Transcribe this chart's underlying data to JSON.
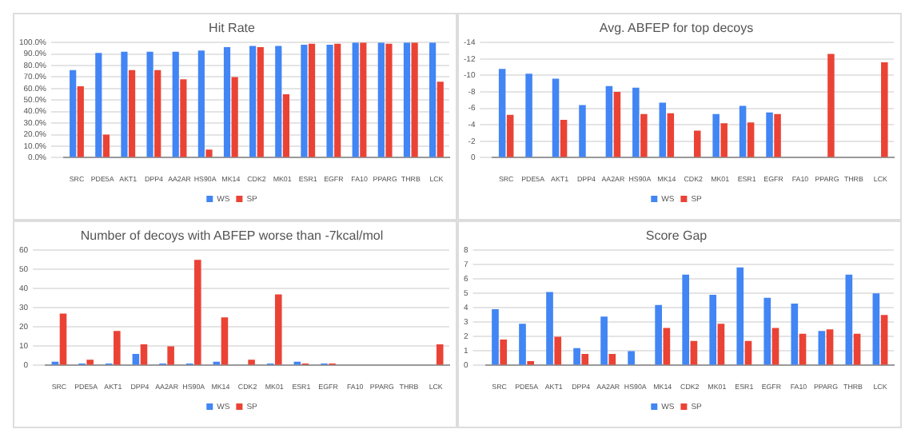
{
  "chart_data": [
    {
      "type": "bar",
      "title": "Hit Rate",
      "categories": [
        "SRC",
        "PDE5A",
        "AKT1",
        "DPP4",
        "AA2AR",
        "HS90A",
        "MK14",
        "CDK2",
        "MK01",
        "ESR1",
        "EGFR",
        "FA10",
        "PPARG",
        "THRB",
        "LCK"
      ],
      "series": [
        {
          "name": "WS",
          "color": "#4285f4",
          "values": [
            76,
            91,
            92,
            92,
            92,
            93,
            96,
            97,
            97,
            98,
            98,
            100,
            100,
            100,
            100
          ]
        },
        {
          "name": "SP",
          "color": "#ea4335",
          "values": [
            62,
            20,
            76,
            76,
            68,
            7,
            70,
            96,
            55,
            99,
            99,
            100,
            99,
            100,
            66
          ]
        }
      ],
      "ylim": [
        0,
        100
      ],
      "yticks": [
        {
          "value": 0,
          "label": "0.0%"
        },
        {
          "value": 10,
          "label": "10.0%"
        },
        {
          "value": 20,
          "label": "20.0%"
        },
        {
          "value": 30,
          "label": "30.0%"
        },
        {
          "value": 40,
          "label": "40.0%"
        },
        {
          "value": 50,
          "label": "50.0%"
        },
        {
          "value": 60,
          "label": "60.0%"
        },
        {
          "value": 70,
          "label": "70.0%"
        },
        {
          "value": 80,
          "label": "80.0%"
        },
        {
          "value": 90,
          "label": "90.0%"
        },
        {
          "value": 100,
          "label": "100.0%"
        }
      ],
      "grid": "y",
      "legend": "bottom"
    },
    {
      "type": "bar",
      "title": "Avg. ABFEP for top decoys",
      "categories": [
        "SRC",
        "PDE5A",
        "AKT1",
        "DPP4",
        "AA2AR",
        "HS90A",
        "MK14",
        "CDK2",
        "MK01",
        "ESR1",
        "EGFR",
        "FA10",
        "PPARG",
        "THRB",
        "LCK"
      ],
      "series": [
        {
          "name": "WS",
          "color": "#4285f4",
          "values": [
            -10.8,
            -10.2,
            -9.6,
            -6.4,
            -8.7,
            -8.5,
            -6.7,
            null,
            -5.3,
            -6.3,
            -5.5,
            null,
            null,
            null,
            null
          ]
        },
        {
          "name": "SP",
          "color": "#ea4335",
          "values": [
            -5.2,
            null,
            -4.6,
            null,
            -8.0,
            -5.3,
            -5.4,
            -3.3,
            -4.2,
            -4.3,
            -5.3,
            null,
            -12.6,
            null,
            -11.6
          ]
        }
      ],
      "ylim": [
        0,
        -14
      ],
      "yticks": [
        0,
        -2,
        -4,
        -6,
        -8,
        -10,
        -12,
        -14
      ],
      "grid": "y",
      "legend": "bottom"
    },
    {
      "type": "bar",
      "title": "Number of decoys with ABFEP worse than -7kcal/mol",
      "categories": [
        "SRC",
        "PDE5A",
        "AKT1",
        "DPP4",
        "AA2AR",
        "HS90A",
        "MK14",
        "CDK2",
        "MK01",
        "ESR1",
        "EGFR",
        "FA10",
        "PPARG",
        "THRB",
        "LCK"
      ],
      "series": [
        {
          "name": "WS",
          "color": "#4285f4",
          "values": [
            2,
            1,
            1,
            6,
            1,
            1,
            2,
            null,
            1,
            2,
            1,
            null,
            null,
            null,
            null
          ]
        },
        {
          "name": "SP",
          "color": "#ea4335",
          "values": [
            27,
            3,
            18,
            11,
            10,
            55,
            25,
            3,
            37,
            1,
            1,
            null,
            null,
            null,
            11
          ]
        }
      ],
      "ylim": [
        0,
        60
      ],
      "yticks": [
        0,
        10,
        20,
        30,
        40,
        50,
        60
      ],
      "grid": "y",
      "legend": "bottom"
    },
    {
      "type": "bar",
      "title": "Score Gap",
      "categories": [
        "SRC",
        "PDE5A",
        "AKT1",
        "DPP4",
        "AA2AR",
        "HS90A",
        "MK14",
        "CDK2",
        "MK01",
        "ESR1",
        "EGFR",
        "FA10",
        "PPARG",
        "THRB",
        "LCK"
      ],
      "series": [
        {
          "name": "WS",
          "color": "#4285f4",
          "values": [
            3.9,
            2.9,
            5.1,
            1.2,
            3.4,
            1.0,
            4.2,
            6.3,
            4.9,
            6.8,
            4.7,
            4.3,
            2.4,
            6.3,
            5.0
          ]
        },
        {
          "name": "SP",
          "color": "#ea4335",
          "values": [
            1.8,
            0.3,
            2.0,
            0.8,
            0.8,
            null,
            2.6,
            1.7,
            2.9,
            1.7,
            2.6,
            2.2,
            2.5,
            2.2,
            3.5
          ]
        }
      ],
      "ylim": [
        0,
        8
      ],
      "yticks": [
        0,
        1,
        2,
        3,
        4,
        5,
        6,
        7,
        8
      ],
      "grid": "y",
      "legend": "bottom"
    }
  ]
}
